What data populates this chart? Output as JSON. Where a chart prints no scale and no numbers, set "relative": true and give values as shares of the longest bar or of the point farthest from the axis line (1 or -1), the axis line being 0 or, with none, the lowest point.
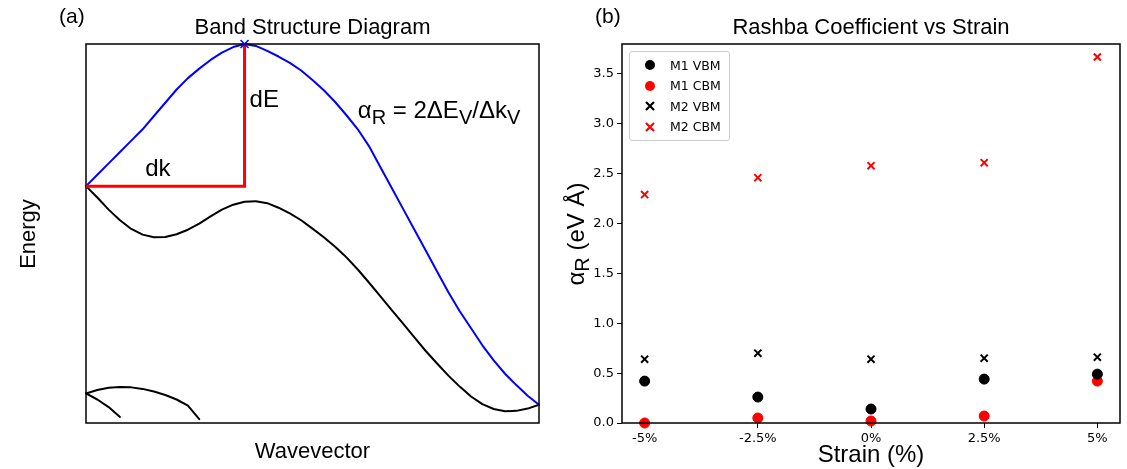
{
  "chart_data": [
    {
      "type": "line",
      "title": "Band Structure Diagram",
      "xlabel": "Wavevector",
      "ylabel": "Energy",
      "relative": true,
      "grid": false,
      "legend": false,
      "marker": "none",
      "line_style": "solid",
      "categories": [
        null,
        null,
        null,
        null,
        null,
        null,
        null,
        null,
        null,
        null,
        null,
        null,
        null,
        null,
        null,
        null,
        null,
        null,
        null,
        null,
        null,
        null,
        null,
        null,
        null,
        null,
        null,
        null,
        null,
        null,
        null,
        null,
        null,
        null,
        null,
        null,
        null,
        null,
        null,
        null,
        null
      ],
      "series": [
        {
          "color": "#0000ff",
          "values": [
            0.625,
            0.655,
            0.685,
            0.715,
            0.745,
            0.775,
            0.81,
            0.845,
            0.88,
            0.91,
            0.935,
            0.958,
            0.977,
            0.992,
            1,
            0.995,
            0.982,
            0.967,
            0.95,
            0.93,
            0.905,
            0.878,
            0.847,
            0.812,
            0.775,
            0.73,
            0.675,
            0.62,
            0.565,
            0.51,
            0.455,
            0.4,
            0.345,
            0.295,
            0.25,
            0.205,
            0.165,
            0.13,
            0.1,
            0.072,
            0.048
          ]
        },
        {
          "color": "#000000",
          "values": [
            0.625,
            0.595,
            0.563,
            0.535,
            0.512,
            0.497,
            0.49,
            0.491,
            0.498,
            0.51,
            0.526,
            0.545,
            0.563,
            0.576,
            0.584,
            0.585,
            0.58,
            0.568,
            0.553,
            0.535,
            0.513,
            0.49,
            0.465,
            0.437,
            0.405,
            0.37,
            0.334,
            0.298,
            0.262,
            0.226,
            0.19,
            0.157,
            0.125,
            0.096,
            0.07,
            0.05,
            0.037,
            0.031,
            0.032,
            0.038,
            0.048
          ]
        },
        {
          "color": "#000000",
          "values": [
            0.078,
            0.087,
            0.093,
            0.095,
            0.094,
            0.09,
            0.083,
            0.074,
            0.062,
            0.046,
            0.01,
            null,
            null,
            null,
            null,
            null,
            null,
            null,
            null,
            null,
            null,
            null,
            null,
            null,
            null,
            null,
            null,
            null,
            null,
            null,
            null,
            null,
            null,
            null,
            null,
            null,
            null,
            null,
            null,
            null,
            null
          ]
        },
        {
          "color": "#000000",
          "values": [
            0.078,
            0.062,
            0.042,
            0.016,
            null,
            null,
            null,
            null,
            null,
            null,
            null,
            null,
            null,
            null,
            null,
            null,
            null,
            null,
            null,
            null,
            null,
            null,
            null,
            null,
            null,
            null,
            null,
            null,
            null,
            null,
            null,
            null,
            null,
            null,
            null,
            null,
            null,
            null,
            null,
            null,
            null
          ]
        }
      ],
      "annotations": [
        "(a)",
        "dk",
        "dE",
        "α$_{R}$ = 2ΔE$_{V}$/Δk$_{V}$"
      ]
    },
    {
      "type": "scatter",
      "title": "Rashba Coefficient vs Strain",
      "xlabel": "Strain (%)",
      "ylabel": "α$_{R}$ (eV Å)",
      "grid": false,
      "legend": "top left",
      "categories": [
        "-5%",
        "-2.5%",
        "0%",
        "2.5%",
        "5%"
      ],
      "ylim": [
        0,
        3.8
      ],
      "yticks": [
        {
          "value": 0,
          "label": "0.0"
        },
        {
          "value": 0.5,
          "label": "0.5"
        },
        {
          "value": 1,
          "label": "1.0"
        },
        {
          "value": 1.5,
          "label": "1.5"
        },
        {
          "value": 2,
          "label": "2.0"
        },
        {
          "value": 2.5,
          "label": "2.5"
        },
        {
          "value": 3,
          "label": "3.0"
        },
        {
          "value": 3.5,
          "label": "3.5"
        }
      ],
      "series": [
        {
          "name": "M1 VBM",
          "color": "#000000",
          "marker": "circle",
          "values": [
            0.42,
            0.26,
            0.14,
            0.44,
            0.49
          ]
        },
        {
          "name": "M1 CBM",
          "color": "#ff0000",
          "marker": "circle",
          "values": [
            0.0,
            0.05,
            0.02,
            0.07,
            0.42
          ]
        },
        {
          "name": "M2 VBM",
          "color": "#000000",
          "marker": "cross",
          "values": [
            0.64,
            0.7,
            0.64,
            0.65,
            0.66
          ]
        },
        {
          "name": "M2 CBM",
          "color": "#ff0000",
          "marker": "cross",
          "values": [
            2.29,
            2.46,
            2.58,
            2.61,
            3.67
          ]
        }
      ],
      "annotations": [
        "(b)"
      ]
    }
  ]
}
